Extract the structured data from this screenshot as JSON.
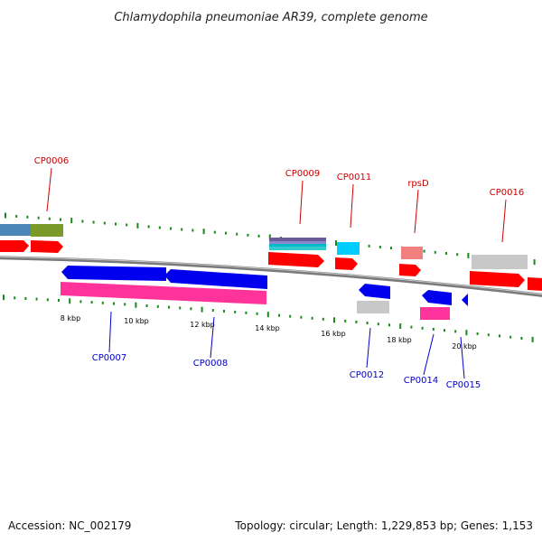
{
  "title": "Chlamydophila pneumoniae AR39, complete genome",
  "accession": "Accession: NC_002179",
  "summary": "Topology: circular; Length: 1,229,853 bp; Genes: 1,153",
  "colors": {
    "forward_label": "#cc0000",
    "reverse_label": "#0000cc",
    "backbone": "#808080",
    "tick": "#1a8a1a",
    "forward_gene": "#ff0000",
    "reverse_gene": "#0000ee",
    "pink_gene": "#ff3399",
    "cyan_gene": "#00ccff",
    "light_red_gene": "#f08080",
    "gray_gene": "#c8c8c8",
    "steel_gene": "#4a86b8",
    "olive_gene": "#7a9a2a"
  },
  "scale": {
    "labels": [
      "8 kbp",
      "10 kbp",
      "12 kbp",
      "14 kbp",
      "16 kbp",
      "18 kbp",
      "20 kbp"
    ]
  },
  "forward_labels": [
    "CP0006",
    "CP0009",
    "CP0011",
    "rpsD",
    "CP0016"
  ],
  "reverse_labels": [
    "CP0007",
    "CP0008",
    "CP0012",
    "CP0014",
    "CP0015"
  ]
}
